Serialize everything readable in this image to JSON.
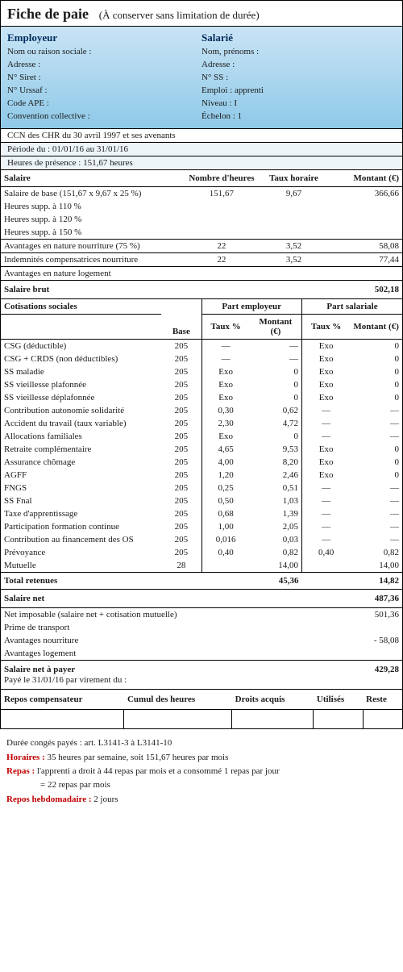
{
  "title": "Fiche de paie",
  "subtitle": "(À conserver sans limitation de durée)",
  "employer": {
    "heading": "Employeur",
    "fields": {
      "name": "Nom ou raison sociale :",
      "address": "Adresse :",
      "siret": "N° Siret :",
      "urssaf": "N° Urssaf :",
      "ape": "Code APE :",
      "convention": "Convention collective :"
    }
  },
  "employee": {
    "heading": "Salarié",
    "fields": {
      "name": "Nom, prénoms :",
      "address": "Adresse :",
      "ss": "N° SS :",
      "emploi": "Emploi : apprenti",
      "niveau": "Niveau : I",
      "echelon": "Échelon : 1"
    }
  },
  "ccn": "CCN des CHR du 30 avril 1997 et ses avenants",
  "periode": "Période du : 01/01/16 au 31/01/16",
  "heures": "Heures de présence : 151,67 heures",
  "salaire": {
    "headers": {
      "label": "Salaire",
      "h": "Nombre d'heures",
      "taux": "Taux horaire",
      "montant": "Montant (€)"
    },
    "rows": [
      {
        "label": "Salaire de base (151,67 x 9,67 x 25 %)",
        "h": "151,67",
        "taux": "9,67",
        "montant": "366,66"
      },
      {
        "label": "Heures supp. à 110 %",
        "h": "",
        "taux": "",
        "montant": ""
      },
      {
        "label": "Heures supp. à 120 %",
        "h": "",
        "taux": "",
        "montant": ""
      },
      {
        "label": "Heures supp. à 150 %",
        "h": "",
        "taux": "",
        "montant": ""
      }
    ],
    "block2": [
      {
        "label": "Avantages en nature nourriture (75 %)",
        "h": "22",
        "taux": "3,52",
        "montant": "58,08"
      }
    ],
    "block3": [
      {
        "label": "Indemnités compensatrices nourriture",
        "h": "22",
        "taux": "3,52",
        "montant": "77,44"
      }
    ],
    "block4": [
      {
        "label": "Avantages en nature logement",
        "h": "",
        "taux": "",
        "montant": ""
      }
    ],
    "brut": {
      "label": "Salaire brut",
      "montant": "502,18"
    }
  },
  "cotisations": {
    "headers": {
      "label": "Cotisations sociales",
      "base": "Base",
      "emp": "Part employeur",
      "sal": "Part salariale",
      "taux": "Taux %",
      "montant": "Montant (€)"
    },
    "rows": [
      {
        "label": "CSG (déductible)",
        "base": "205",
        "et": "—",
        "em": "—",
        "st": "Exo",
        "sm": "0"
      },
      {
        "label": "CSG + CRDS (non déductibles)",
        "base": "205",
        "et": "—",
        "em": "—",
        "st": "Exo",
        "sm": "0"
      },
      {
        "label": "SS maladie",
        "base": "205",
        "et": "Exo",
        "em": "0",
        "st": "Exo",
        "sm": "0"
      },
      {
        "label": "SS vieillesse plafonnée",
        "base": "205",
        "et": "Exo",
        "em": "0",
        "st": "Exo",
        "sm": "0"
      },
      {
        "label": "SS vieillesse déplafonnée",
        "base": "205",
        "et": "Exo",
        "em": "0",
        "st": "Exo",
        "sm": "0"
      },
      {
        "label": "Contribution autonomie solidarité",
        "base": "205",
        "et": "0,30",
        "em": "0,62",
        "st": "—",
        "sm": "—"
      },
      {
        "label": "Accident du travail (taux variable)",
        "base": "205",
        "et": "2,30",
        "em": "4,72",
        "st": "—",
        "sm": "—"
      },
      {
        "label": "Allocations familiales",
        "base": "205",
        "et": "Exo",
        "em": "0",
        "st": "—",
        "sm": "—"
      },
      {
        "label": "Retraite complémentaire",
        "base": "205",
        "et": "4,65",
        "em": "9,53",
        "st": "Exo",
        "sm": "0"
      },
      {
        "label": "Assurance chômage",
        "base": "205",
        "et": "4,00",
        "em": "8,20",
        "st": "Exo",
        "sm": "0"
      },
      {
        "label": "AGFF",
        "base": "205",
        "et": "1,20",
        "em": "2,46",
        "st": "Exo",
        "sm": "0"
      },
      {
        "label": "FNGS",
        "base": "205",
        "et": "0,25",
        "em": "0,51",
        "st": "—",
        "sm": "—"
      },
      {
        "label": "SS Fnal",
        "base": "205",
        "et": "0,50",
        "em": "1,03",
        "st": "—",
        "sm": "—"
      },
      {
        "label": "Taxe d'apprentissage",
        "base": "205",
        "et": "0,68",
        "em": "1,39",
        "st": "—",
        "sm": "—"
      },
      {
        "label": "Participation formation continue",
        "base": "205",
        "et": "1,00",
        "em": "2,05",
        "st": "—",
        "sm": "—"
      },
      {
        "label": "Contribution au financement des OS",
        "base": "205",
        "et": "0,016",
        "em": "0,03",
        "st": "—",
        "sm": "—"
      },
      {
        "label": "Prévoyance",
        "base": "205",
        "et": "0,40",
        "em": "0,82",
        "st": "0,40",
        "sm": "0,82"
      },
      {
        "label": "Mutuelle",
        "base": "28",
        "et": "",
        "em": "14,00",
        "st": "",
        "sm": "14,00"
      }
    ],
    "total": {
      "label": "Total retenues",
      "em": "45,36",
      "sm": "14,82"
    }
  },
  "net": {
    "label": "Salaire net",
    "montant": "487,36"
  },
  "adjust": [
    {
      "label": "Net imposable (salaire net + cotisation mutuelle)",
      "montant": "501,36"
    },
    {
      "label": "Prime de transport",
      "montant": ""
    },
    {
      "label": "Avantages nourriture",
      "montant": "- 58,08"
    },
    {
      "label": "Avantages logement",
      "montant": ""
    }
  ],
  "payer": {
    "label": "Salaire net à payer",
    "montant": "429,28",
    "sub": "Payé le 31/01/16  par virement du :"
  },
  "repos": {
    "headers": [
      "Repos compensateur",
      "Cumul des heures",
      "Droits acquis",
      "Utilisés",
      "Reste"
    ]
  },
  "footer": {
    "conges": "Durée congés payés : art. L3141-3 à L3141-10",
    "horaires_lbl": "Horaires :",
    "horaires": " 35 heures par semaine, soit 151,67 heures par mois",
    "repas_lbl": "Repas :",
    "repas": " l'apprenti a droit à 44 repas par mois et a consommé 1 repas par jour",
    "repas2": "= 22 repas par mois",
    "hebdo_lbl": "Repos hebdomadaire :",
    "hebdo": " 2 jours"
  }
}
